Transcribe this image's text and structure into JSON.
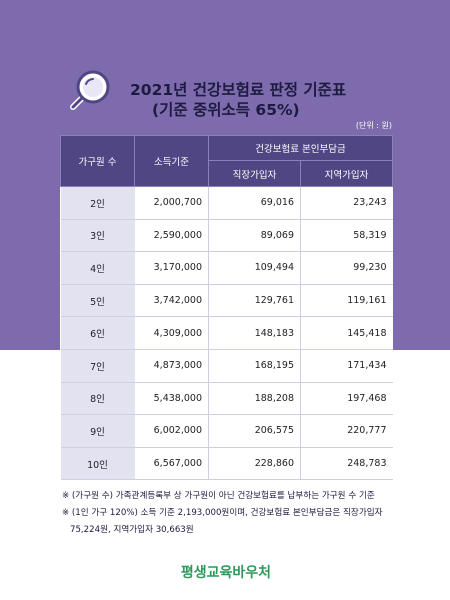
{
  "colors": {
    "background_top": "#7d6bad",
    "header": "#514684",
    "first_column": "#e3e2f1",
    "title_text": "#1d1b3f",
    "logo": "#2b9a5a"
  },
  "icons": {
    "title_icon": "magnifier-icon"
  },
  "title": {
    "line1": "2021년 건강보험료 판정 기준표",
    "line2": "(기준 중위소득 65%)"
  },
  "unit": "(단위 : 원)",
  "table": {
    "headers": {
      "persons": "가구원 수",
      "income": "소득기준",
      "contribution": "건강보험료 본인부담금",
      "workplace": "직장가입자",
      "regional": "지역가입자"
    },
    "rows": [
      {
        "persons": "2인",
        "income": "2,000,700",
        "workplace": "69,016",
        "regional": "23,243"
      },
      {
        "persons": "3인",
        "income": "2,590,000",
        "workplace": "89,069",
        "regional": "58,319"
      },
      {
        "persons": "4인",
        "income": "3,170,000",
        "workplace": "109,494",
        "regional": "99,230"
      },
      {
        "persons": "5인",
        "income": "3,742,000",
        "workplace": "129,761",
        "regional": "119,161"
      },
      {
        "persons": "6인",
        "income": "4,309,000",
        "workplace": "148,183",
        "regional": "145,418"
      },
      {
        "persons": "7인",
        "income": "4,873,000",
        "workplace": "168,195",
        "regional": "171,434"
      },
      {
        "persons": "8인",
        "income": "5,438,000",
        "workplace": "188,208",
        "regional": "197,468"
      },
      {
        "persons": "9인",
        "income": "6,002,000",
        "workplace": "206,575",
        "regional": "220,777"
      },
      {
        "persons": "10인",
        "income": "6,567,000",
        "workplace": "228,860",
        "regional": "248,783"
      }
    ]
  },
  "notes": {
    "line1": "※ (가구원 수) 가족관계등록부 상 가구원이 아닌 건강보험료를 납부하는 가구원 수 기준",
    "line2": "※ (1인 가구 120%) 소득 기준 2,193,000원이며, 건강보험료 본인부담금은 직장가입자",
    "line3": "75,224원, 지역가입자 30,663원"
  },
  "logo": "평생교육바우처"
}
